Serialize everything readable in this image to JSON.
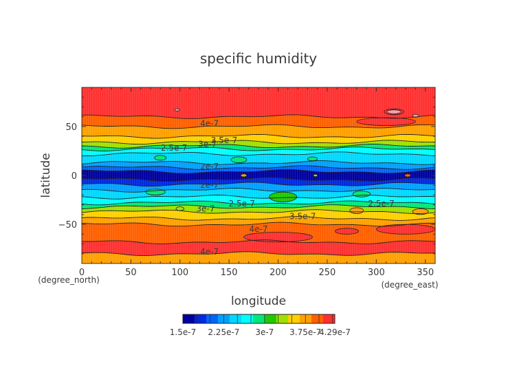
{
  "chart_data": {
    "type": "heatmap",
    "title": "specific humidity",
    "xlabel": "longitude",
    "ylabel": "latitude",
    "x_unit": "(degree_east)",
    "y_unit": "(degree_north)",
    "xlim": [
      0,
      360
    ],
    "ylim": [
      -90,
      90
    ],
    "x_ticks": [
      "0",
      "50",
      "100",
      "150",
      "200",
      "250",
      "300",
      "350"
    ],
    "y_ticks": [
      "50",
      "0",
      "-50"
    ],
    "contour_levels": [
      1.5e-07,
      1.75e-07,
      2e-07,
      2.25e-07,
      2.5e-07,
      2.75e-07,
      3e-07,
      3.25e-07,
      3.5e-07,
      3.75e-07,
      4e-07,
      4.25e-07,
      4.29e-07
    ],
    "colorbar_labels": [
      "1.5e-7",
      "2.25e-7",
      "3e-7",
      "3.75e-7",
      "4.29e-7"
    ],
    "colorbar_colors": [
      "#0000a0",
      "#0028e0",
      "#0064ff",
      "#00a0ff",
      "#00d8ff",
      "#00ffff",
      "#00e878",
      "#20c800",
      "#a0e000",
      "#ffd000",
      "#ffa000",
      "#ff6000",
      "#ff3030"
    ],
    "contour_labels": [
      {
        "text": "4e-7",
        "x": 130,
        "y": 53
      },
      {
        "text": "3.5e-7",
        "x": 145,
        "y": 36
      },
      {
        "text": "3e-7",
        "x": 128,
        "y": 32
      },
      {
        "text": "2.5e-7",
        "x": 94,
        "y": 28
      },
      {
        "text": "2e-7",
        "x": 130,
        "y": 9
      },
      {
        "text": "2e-7",
        "x": 130,
        "y": -10
      },
      {
        "text": "2.5e-7",
        "x": 163,
        "y": -29
      },
      {
        "text": "2.5e-7",
        "x": 305,
        "y": -29
      },
      {
        "text": "3e-7",
        "x": 126,
        "y": -34
      },
      {
        "text": "3.5e-7",
        "x": 225,
        "y": -42
      },
      {
        "text": "4e-7",
        "x": 180,
        "y": -55
      },
      {
        "text": "4e-7",
        "x": 130,
        "y": -78
      }
    ],
    "bands": [
      {
        "lat0": 90,
        "lat1": 60,
        "level": 12
      },
      {
        "lat0": 60,
        "lat1": 50,
        "level": 11
      },
      {
        "lat0": 50,
        "lat1": 40,
        "level": 10
      },
      {
        "lat0": 40,
        "lat1": 34,
        "level": 9
      },
      {
        "lat0": 34,
        "lat1": 30,
        "level": 8
      },
      {
        "lat0": 30,
        "lat1": 27,
        "level": 6
      },
      {
        "lat0": 27,
        "lat1": 22,
        "level": 5
      },
      {
        "lat0": 22,
        "lat1": 13,
        "level": 4
      },
      {
        "lat0": 13,
        "lat1": 8,
        "level": 3
      },
      {
        "lat0": 8,
        "lat1": 4,
        "level": 2
      },
      {
        "lat0": 4,
        "lat1": -4,
        "level": 0
      },
      {
        "lat0": -4,
        "lat1": -9,
        "level": 1
      },
      {
        "lat0": -9,
        "lat1": -15,
        "level": 3
      },
      {
        "lat0": -15,
        "lat1": -22,
        "level": 4
      },
      {
        "lat0": -22,
        "lat1": -28,
        "level": 5
      },
      {
        "lat0": -28,
        "lat1": -32,
        "level": 6
      },
      {
        "lat0": -32,
        "lat1": -37,
        "level": 8
      },
      {
        "lat0": -37,
        "lat1": -44,
        "level": 9
      },
      {
        "lat0": -44,
        "lat1": -50,
        "level": 10
      },
      {
        "lat0": -50,
        "lat1": -68,
        "level": 11
      },
      {
        "lat0": -68,
        "lat1": -80,
        "level": 12
      },
      {
        "lat0": -80,
        "lat1": -90,
        "level": 10
      }
    ],
    "patches": [
      {
        "lon": 165,
        "lat": 0,
        "rx": 3,
        "ry": 1.5,
        "level": 10
      },
      {
        "lon": 332,
        "lat": 0,
        "rx": 3,
        "ry": 1.5,
        "level": 11
      },
      {
        "lon": 238,
        "lat": 0,
        "rx": 2,
        "ry": 1.2,
        "level": 8
      },
      {
        "lon": 160,
        "lat": 16,
        "rx": 8,
        "ry": 3,
        "level": 6
      },
      {
        "lon": 80,
        "lat": 18,
        "rx": 6,
        "ry": 2.5,
        "level": 6
      },
      {
        "lon": 235,
        "lat": 17,
        "rx": 5,
        "ry": 2,
        "level": 6
      },
      {
        "lon": 75,
        "lat": -17,
        "rx": 10,
        "ry": 3,
        "level": 6
      },
      {
        "lon": 205,
        "lat": -22,
        "rx": 14,
        "ry": 5,
        "level": 7
      },
      {
        "lon": 285,
        "lat": -19,
        "rx": 9,
        "ry": 3,
        "level": 6
      },
      {
        "lon": 100,
        "lat": -34,
        "rx": 4,
        "ry": 2,
        "level": 8
      },
      {
        "lon": 280,
        "lat": -36,
        "rx": 7,
        "ry": 3,
        "level": 10
      },
      {
        "lon": 345,
        "lat": -37,
        "rx": 8,
        "ry": 3,
        "level": 10
      },
      {
        "lon": 318,
        "lat": 65,
        "rx": 10,
        "ry": 3,
        "level": 12
      },
      {
        "lon": 318,
        "lat": 65,
        "rx": 7,
        "ry": 2,
        "level": 13
      },
      {
        "lon": 97,
        "lat": 67,
        "rx": 2.5,
        "ry": 1.2,
        "level": 13
      },
      {
        "lon": 340,
        "lat": 61,
        "rx": 3,
        "ry": 1.5,
        "level": 13
      },
      {
        "lon": 310,
        "lat": 55,
        "rx": 30,
        "ry": 4,
        "level": 12
      },
      {
        "lon": 270,
        "lat": -57,
        "rx": 12,
        "ry": 3,
        "level": 12
      },
      {
        "lon": 200,
        "lat": -63,
        "rx": 35,
        "ry": 5,
        "level": 12
      },
      {
        "lon": 330,
        "lat": -55,
        "rx": 30,
        "ry": 5,
        "level": 12
      }
    ],
    "patch_extra_colors": {
      "13": "#ff9aa8"
    }
  }
}
